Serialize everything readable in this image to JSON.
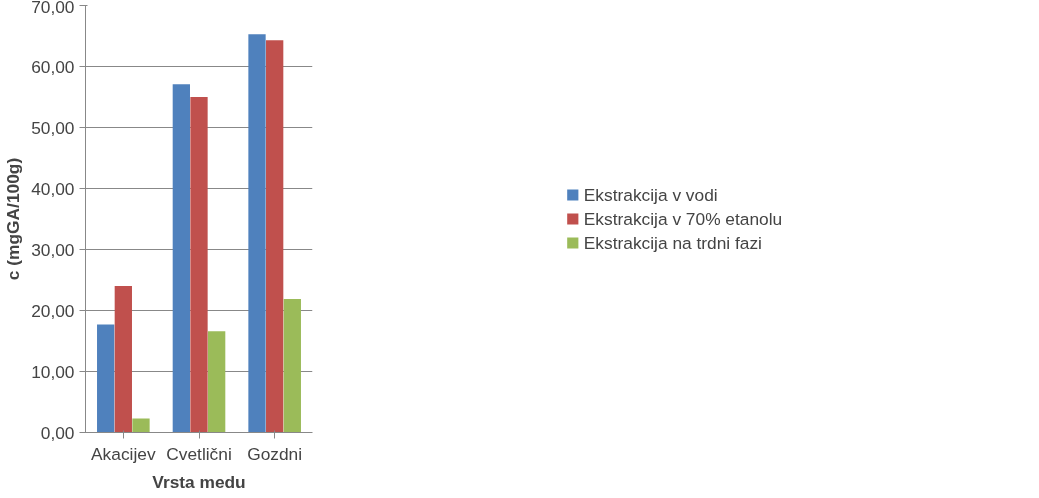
{
  "chart_data": {
    "type": "bar",
    "xlabel": "Vrsta medu",
    "ylabel": "c (mgGA/100g)",
    "categories": [
      "Akacijev",
      "Cvetlični",
      "Gozdni"
    ],
    "series": [
      {
        "name": "Ekstrakcija v vodi",
        "color": "#4f81bd",
        "values": [
          17.7,
          57.1,
          65.3
        ]
      },
      {
        "name": "Ekstrakcija v 70% etanolu",
        "color": "#c0504d",
        "values": [
          24.0,
          55.0,
          64.3
        ]
      },
      {
        "name": "Ekstrakcija na trdni fazi",
        "color": "#9bbb59",
        "values": [
          2.3,
          16.6,
          21.9
        ]
      }
    ],
    "ylim": [
      0,
      70
    ],
    "yticks": [
      {
        "value": 0,
        "label": "0,00"
      },
      {
        "value": 10,
        "label": "10,00"
      },
      {
        "value": 20,
        "label": "20,00"
      },
      {
        "value": 30,
        "label": "30,00"
      },
      {
        "value": 40,
        "label": "40,00"
      },
      {
        "value": 50,
        "label": "50,00"
      },
      {
        "value": 60,
        "label": "60,00"
      },
      {
        "value": 70,
        "label": "70,00"
      }
    ],
    "grid": "y",
    "legend": "right"
  }
}
